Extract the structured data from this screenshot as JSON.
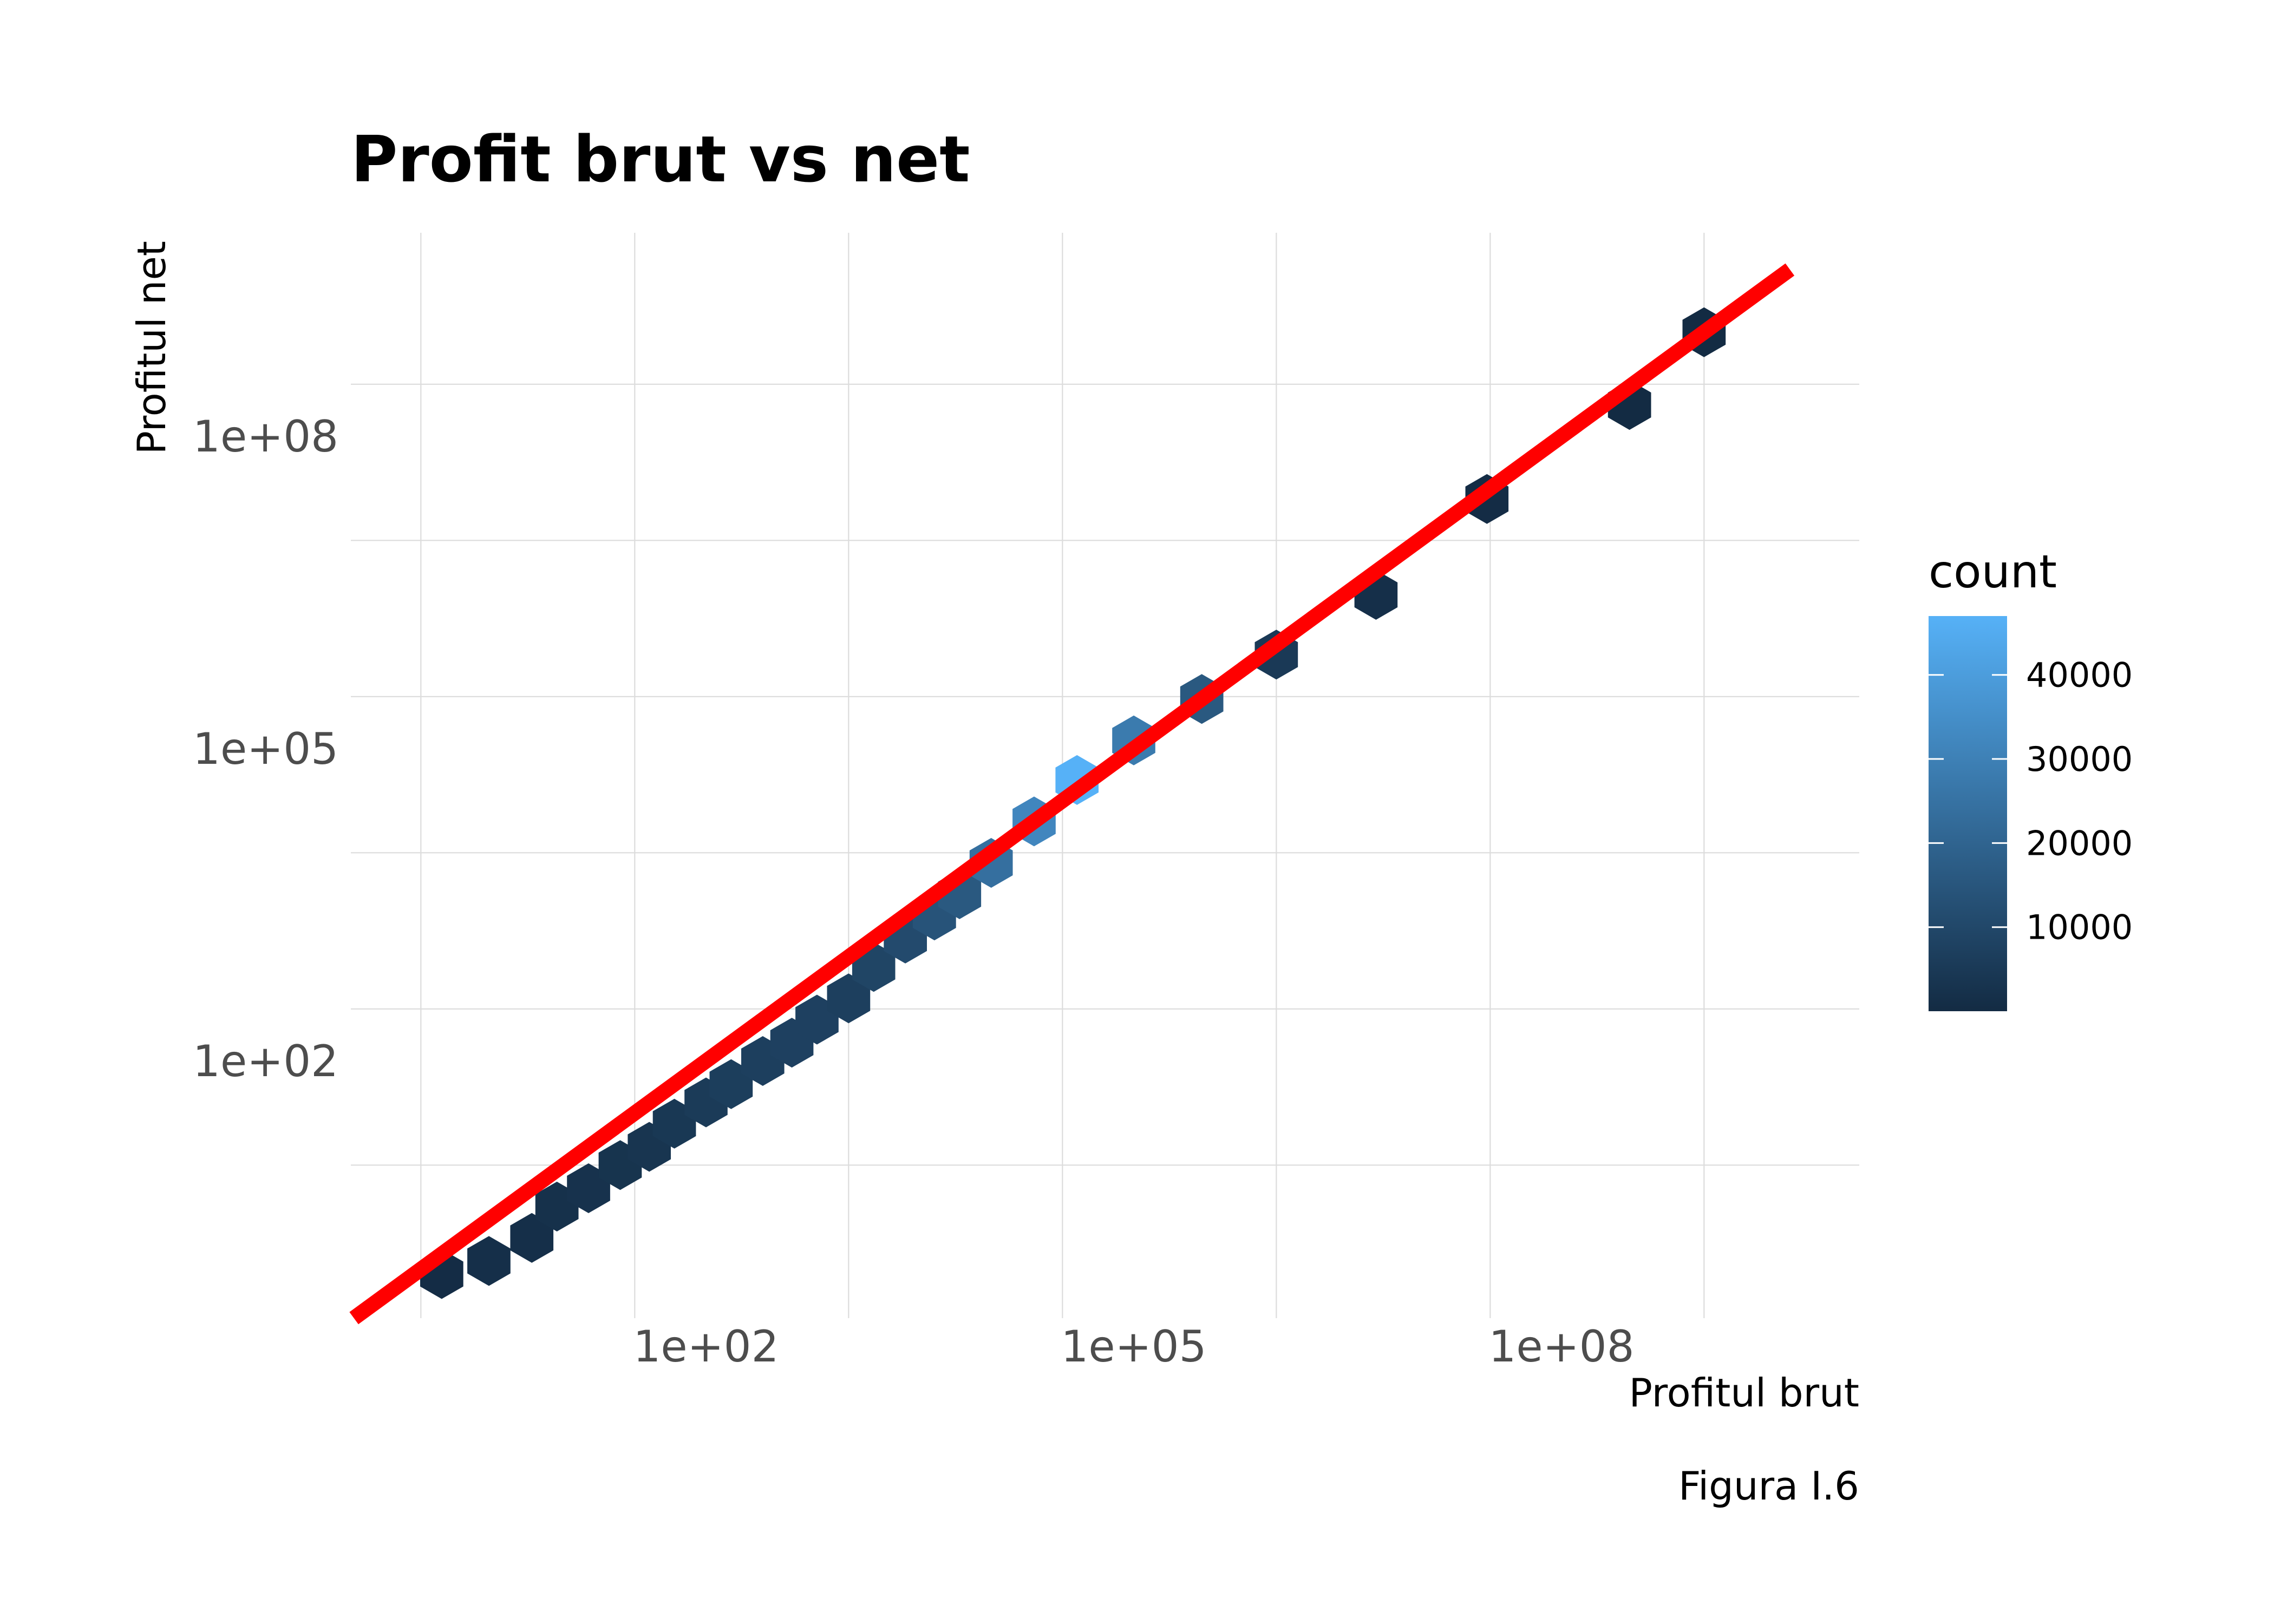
{
  "chart_data": {
    "type": "heatmap",
    "subtype": "hexbin",
    "title": "Profit brut vs net",
    "xlabel": "Profitul brut",
    "ylabel": "Profitul net",
    "caption": "Figura I.6",
    "x_scale": "log10",
    "y_scale": "log10",
    "xlim": [
      0.03,
      4000000000
    ],
    "ylim": [
      0.2,
      4000000000
    ],
    "x_ticks": [
      {
        "value": 100,
        "label": "1e+02"
      },
      {
        "value": 100000,
        "label": "1e+05"
      },
      {
        "value": 100000000,
        "label": "1e+08"
      }
    ],
    "y_ticks": [
      {
        "value": 100,
        "label": "1e+02"
      },
      {
        "value": 100000,
        "label": "1e+05"
      },
      {
        "value": 100000000,
        "label": "1e+08"
      }
    ],
    "grid": true,
    "reference_line": {
      "type": "identity",
      "slope": 1,
      "intercept": 0,
      "color": "#ff0000"
    },
    "legend": {
      "title": "count",
      "position": "right",
      "ticks": [
        10000,
        20000,
        30000,
        40000
      ],
      "tick_labels": [
        "10000",
        "20000",
        "30000",
        "40000"
      ],
      "range": [
        1,
        47000
      ],
      "color_low": "#132b43",
      "color_high": "#56b1f7"
    },
    "hex_bins": [
      {
        "x": 1.4,
        "y": 0.9,
        "count": 500
      },
      {
        "x": 3,
        "y": 1.2,
        "count": 1500
      },
      {
        "x": 6,
        "y": 2,
        "count": 1500
      },
      {
        "x": 9,
        "y": 4,
        "count": 2000
      },
      {
        "x": 15,
        "y": 6,
        "count": 2500
      },
      {
        "x": 25,
        "y": 10,
        "count": 3000
      },
      {
        "x": 40,
        "y": 15,
        "count": 3500
      },
      {
        "x": 60,
        "y": 25,
        "count": 4500
      },
      {
        "x": 100,
        "y": 40,
        "count": 5500
      },
      {
        "x": 150,
        "y": 60,
        "count": 6500
      },
      {
        "x": 250,
        "y": 100,
        "count": 7000
      },
      {
        "x": 400,
        "y": 150,
        "count": 7500
      },
      {
        "x": 600,
        "y": 250,
        "count": 7500
      },
      {
        "x": 1000,
        "y": 400,
        "count": 7000
      },
      {
        "x": 1500,
        "y": 800,
        "count": 9000
      },
      {
        "x": 2500,
        "y": 1500,
        "count": 11000
      },
      {
        "x": 4000,
        "y": 2500,
        "count": 14000
      },
      {
        "x": 6000,
        "y": 4000,
        "count": 16000
      },
      {
        "x": 10000,
        "y": 8000,
        "count": 24000
      },
      {
        "x": 20000,
        "y": 20000,
        "count": 32000
      },
      {
        "x": 40000,
        "y": 50000,
        "count": 47000
      },
      {
        "x": 100000,
        "y": 120000,
        "count": 28000
      },
      {
        "x": 300000,
        "y": 300000,
        "count": 16000
      },
      {
        "x": 1000000,
        "y": 800000,
        "count": 5000
      },
      {
        "x": 5000000,
        "y": 3000000,
        "count": 1500
      },
      {
        "x": 30000000,
        "y": 25000000,
        "count": 500
      },
      {
        "x": 300000000,
        "y": 200000000,
        "count": 100
      },
      {
        "x": 1000000000,
        "y": 1000000000,
        "count": 20
      }
    ]
  }
}
